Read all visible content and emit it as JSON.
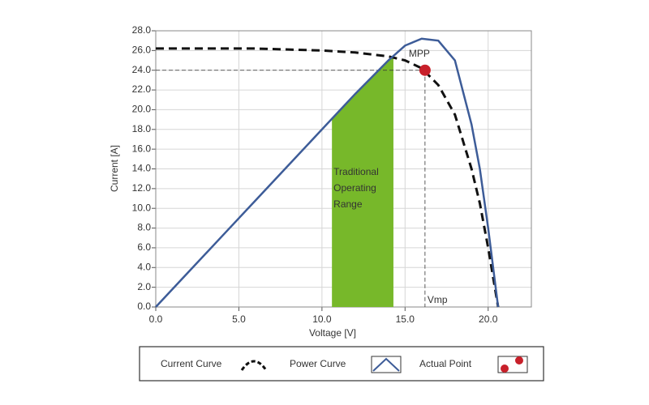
{
  "chart_data": {
    "type": "line",
    "x_label": "Voltage [V]",
    "y_label": "Current [A]",
    "x": [
      0,
      2,
      4,
      6,
      8,
      10,
      11,
      12,
      13,
      14,
      15,
      16,
      17,
      18,
      19,
      19.5,
      20,
      20.3,
      20.6
    ],
    "series": [
      {
        "name": "Current Curve",
        "color": "#111111",
        "dashed": true,
        "values": [
          26.2,
          26.2,
          26.2,
          26.2,
          26.1,
          26.0,
          25.9,
          25.8,
          25.6,
          25.4,
          25.0,
          24.2,
          22.5,
          19.5,
          14,
          10.5,
          6,
          3,
          0
        ]
      },
      {
        "name": "Power Curve",
        "color": "#3d5c98",
        "dashed": false,
        "values": [
          0,
          3.6,
          7.2,
          10.8,
          14.4,
          18,
          19.8,
          21.6,
          23.3,
          25.0,
          26.5,
          27.2,
          27.0,
          25.0,
          18.5,
          14,
          8,
          4,
          0
        ]
      }
    ],
    "point": {
      "name": "Actual Point",
      "x": 16.2,
      "y": 24,
      "color": "#c8202a",
      "label": "MPP",
      "x_label": "Vmp"
    },
    "band": {
      "range": [
        10.6,
        14.3
      ],
      "color": "#77b82a",
      "label_lines": [
        "Traditional",
        "Operating",
        "Range"
      ]
    },
    "xlim": [
      0,
      22.6
    ],
    "ylim": [
      0,
      28
    ],
    "xticks": [
      {
        "value": 0,
        "label": "0.0"
      },
      {
        "value": 5,
        "label": "5.0"
      },
      {
        "value": 10,
        "label": "10.0"
      },
      {
        "value": 15,
        "label": "15.0"
      },
      {
        "value": 20,
        "label": "20.0"
      }
    ],
    "yticks": [
      {
        "value": 0,
        "label": "0.0"
      },
      {
        "value": 2,
        "label": "2.0"
      },
      {
        "value": 4,
        "label": "4.0"
      },
      {
        "value": 6,
        "label": "6.0"
      },
      {
        "value": 8,
        "label": "8.0"
      },
      {
        "value": 10,
        "label": "10.0"
      },
      {
        "value": 12,
        "label": "12.0"
      },
      {
        "value": 14,
        "label": "14.0"
      },
      {
        "value": 16,
        "label": "16.0"
      },
      {
        "value": 18,
        "label": "18.0"
      },
      {
        "value": 20,
        "label": "20.0"
      },
      {
        "value": 22,
        "label": "22.0"
      },
      {
        "value": 24,
        "label": "24.0"
      },
      {
        "value": 26,
        "label": "26.0"
      },
      {
        "value": 28,
        "label": "28.0"
      }
    ],
    "grid": true
  }
}
